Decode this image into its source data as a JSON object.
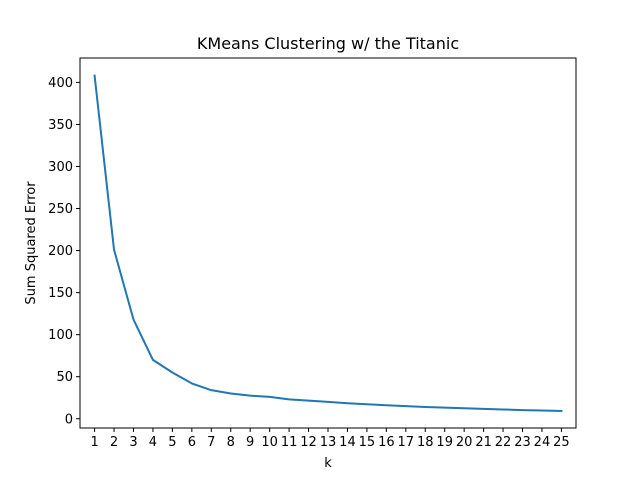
{
  "chart_data": {
    "type": "line",
    "title": "KMeans Clustering w/ the Titanic",
    "xlabel": "k",
    "ylabel": "Sum Squared Error",
    "x": [
      1,
      2,
      3,
      4,
      5,
      6,
      7,
      8,
      9,
      10,
      11,
      12,
      13,
      14,
      15,
      16,
      17,
      18,
      19,
      20,
      21,
      22,
      23,
      24,
      25
    ],
    "series": [
      {
        "values": [
          408,
          201,
          118,
          70,
          55,
          42,
          34,
          30,
          27.5,
          26,
          23,
          21.5,
          20,
          18.5,
          17.3,
          16,
          15,
          14,
          13.2,
          12.5,
          11.7,
          11,
          10.3,
          9.8,
          9.3
        ],
        "color": "#1f77b4"
      }
    ],
    "xlim": [
      0.25,
      25.75
    ],
    "ylim": [
      -11,
      429
    ],
    "xticks": [
      1,
      2,
      3,
      4,
      5,
      6,
      7,
      8,
      9,
      10,
      11,
      12,
      13,
      14,
      15,
      16,
      17,
      18,
      19,
      20,
      21,
      22,
      23,
      24,
      25
    ],
    "yticks": [
      0,
      50,
      100,
      150,
      200,
      250,
      300,
      350,
      400
    ],
    "grid": false,
    "legend": "none"
  }
}
